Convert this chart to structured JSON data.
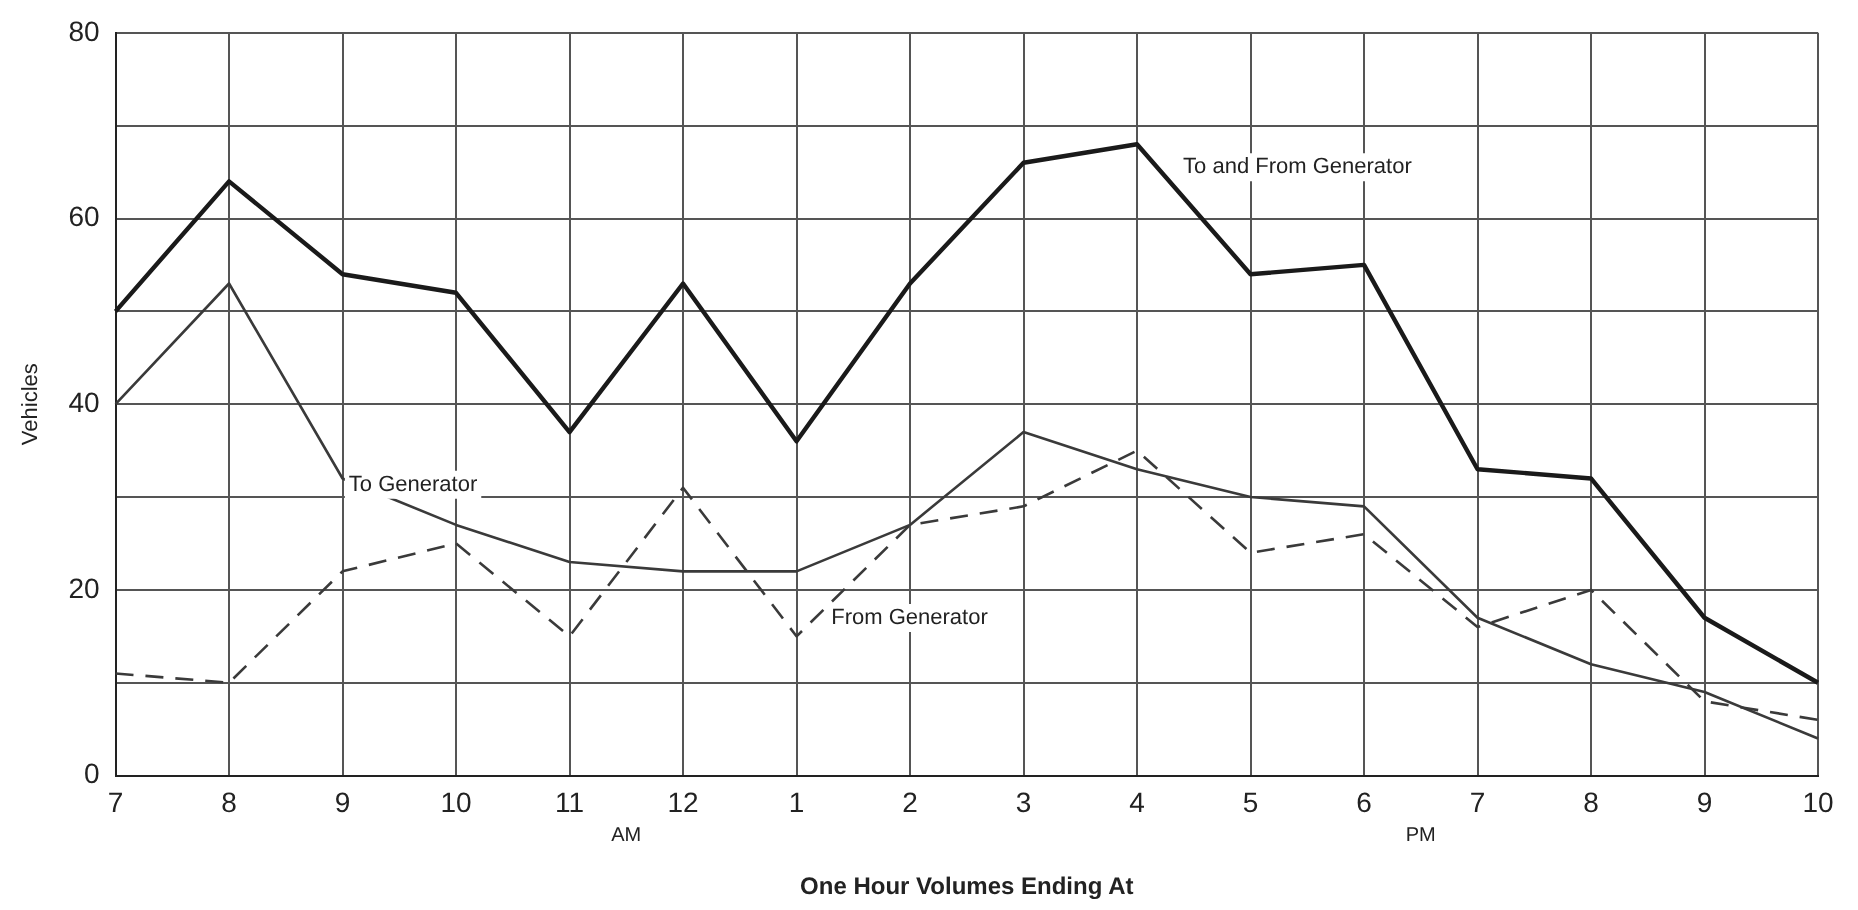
{
  "chart_data": {
    "type": "line",
    "xlabel": "One Hour Volumes Ending At",
    "ylabel": "Vehicles",
    "categories": [
      "7",
      "8",
      "9",
      "10",
      "11",
      "12",
      "1",
      "2",
      "3",
      "4",
      "5",
      "6",
      "7",
      "8",
      "9",
      "10"
    ],
    "series": [
      {
        "name": "To and From Generator",
        "color": "#1a1a1a",
        "line_style": "solid",
        "values": [
          50,
          64,
          54,
          52,
          37,
          53,
          36,
          53,
          66,
          68,
          54,
          55,
          33,
          32,
          17,
          10
        ]
      },
      {
        "name": "To Generator",
        "color": "#3a3a3a",
        "line_style": "solid",
        "values": [
          40,
          53,
          32,
          27,
          23,
          22,
          22,
          27,
          37,
          33,
          30,
          29,
          17,
          12,
          9,
          4
        ]
      },
      {
        "name": "From Generator",
        "color": "#3a3a3a",
        "line_style": "dashed",
        "values": [
          11,
          10,
          22,
          25,
          15,
          31,
          15,
          27,
          29,
          35,
          24,
          26,
          16,
          20,
          8,
          6
        ]
      }
    ],
    "annotations": [
      "AM",
      "PM"
    ],
    "ylim": [
      0,
      80
    ],
    "yticks": [
      0,
      {
        "value": 10,
        "label": null
      },
      20,
      {
        "value": 30,
        "label": null
      },
      40,
      {
        "value": 50,
        "label": null
      },
      60,
      {
        "value": 70,
        "label": null
      },
      80
    ],
    "grid": true,
    "marker": "none",
    "legend": false
  }
}
